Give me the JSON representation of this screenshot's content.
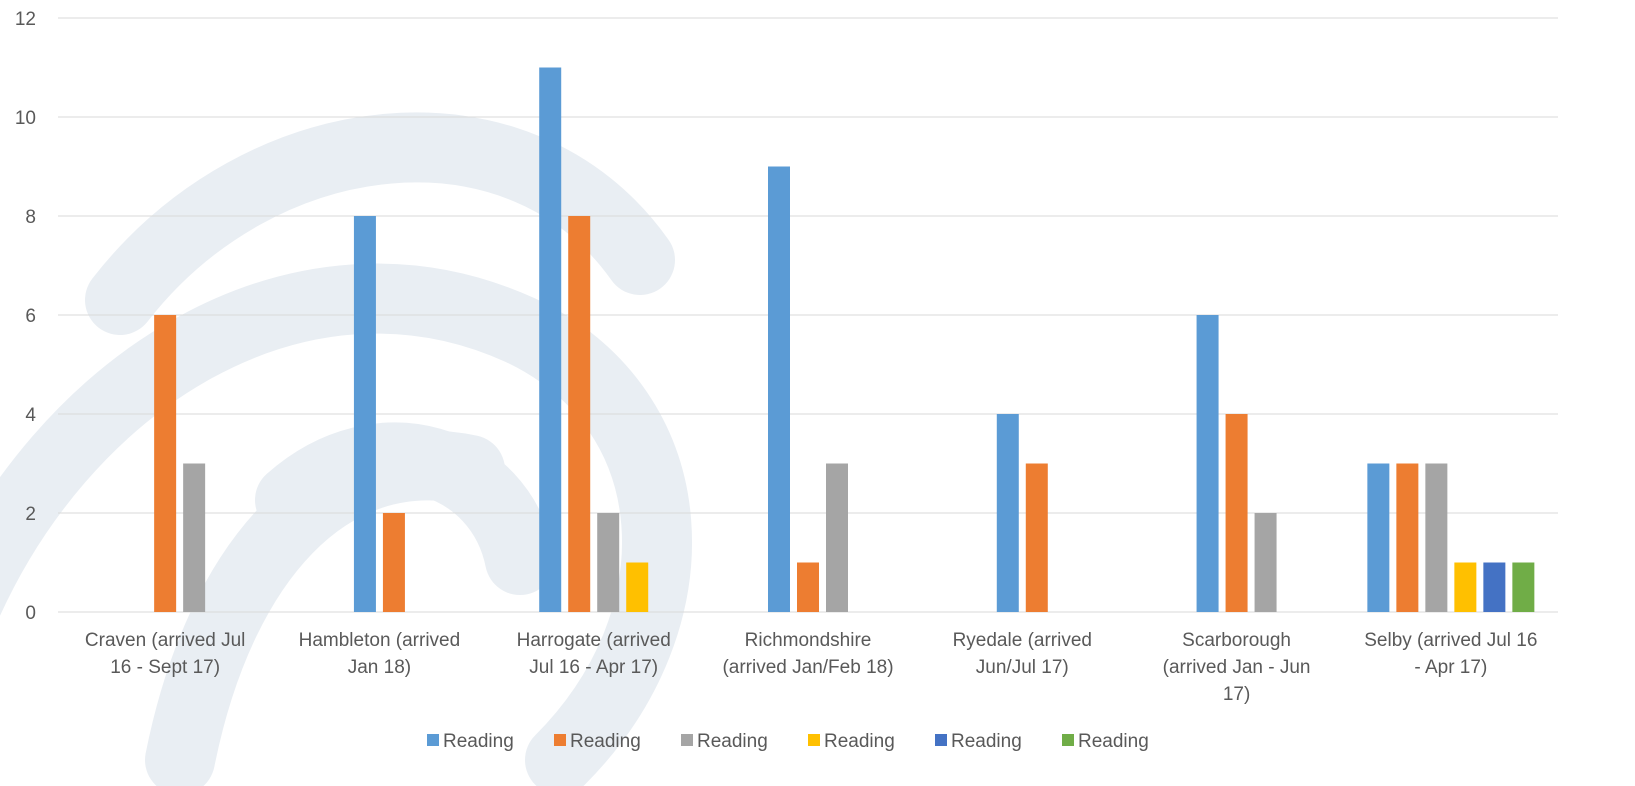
{
  "chart_data": {
    "type": "bar",
    "title": "",
    "xlabel": "",
    "ylabel": "",
    "ylim": [
      0,
      12
    ],
    "yticks": [
      0,
      2,
      4,
      6,
      8,
      10,
      12
    ],
    "grid": true,
    "legend_position": "bottom",
    "categories": [
      [
        "Craven (arrived Jul",
        "16 - Sept 17)"
      ],
      [
        "Hambleton (arrived",
        "Jan 18)"
      ],
      [
        "Harrogate (arrived",
        "Jul 16 - Apr 17)"
      ],
      [
        "Richmondshire",
        "(arrived Jan/Feb 18)"
      ],
      [
        "Ryedale (arrived",
        "Jun/Jul 17)"
      ],
      [
        "Scarborough",
        "(arrived Jan - Jun",
        "17)"
      ],
      [
        "Selby (arrived Jul 16",
        "- Apr 17)"
      ]
    ],
    "series": [
      {
        "name": "Reading",
        "color": "#5b9bd5",
        "values": [
          0,
          8,
          11,
          9,
          4,
          6,
          3
        ]
      },
      {
        "name": "Reading",
        "color": "#ed7d31",
        "values": [
          6,
          2,
          8,
          1,
          3,
          4,
          3
        ]
      },
      {
        "name": "Reading",
        "color": "#a5a5a5",
        "values": [
          3,
          0,
          2,
          3,
          0,
          2,
          3
        ]
      },
      {
        "name": "Reading",
        "color": "#ffc000",
        "values": [
          0,
          0,
          1,
          0,
          0,
          0,
          1
        ]
      },
      {
        "name": "Reading",
        "color": "#4472c4",
        "values": [
          0,
          0,
          0,
          0,
          0,
          0,
          1
        ]
      },
      {
        "name": "Reading",
        "color": "#70ad47",
        "values": [
          0,
          0,
          0,
          0,
          0,
          0,
          1
        ]
      }
    ]
  }
}
